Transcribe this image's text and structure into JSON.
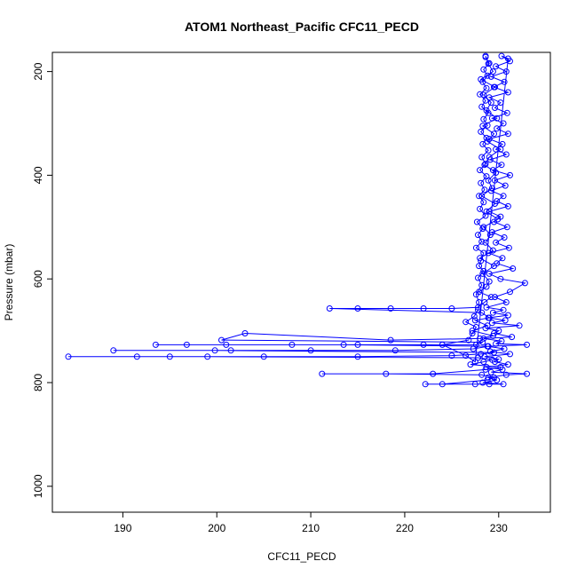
{
  "chart_data": {
    "type": "line",
    "title": "ATOM1 Northeast_Pacific CFC11_PECD",
    "xlabel": "CFC11_PECD",
    "ylabel": "Pressure (mbar)",
    "xlim": [
      182.5,
      235.5
    ],
    "ylim": [
      1050,
      163
    ],
    "y_inverted": true,
    "grid": false,
    "xticks": [
      190,
      200,
      210,
      220,
      230
    ],
    "yticks": [
      200,
      400,
      600,
      800,
      1000
    ],
    "colors": {
      "series": "#0000ff"
    },
    "series": [
      {
        "style": "points-and-lines",
        "points": [
          [
            228.6,
            170
          ],
          [
            228.9,
            185
          ],
          [
            229.4,
            200
          ],
          [
            228.1,
            215
          ],
          [
            229.6,
            230
          ],
          [
            228.4,
            245
          ],
          [
            229.2,
            260
          ],
          [
            228.7,
            275
          ],
          [
            229.8,
            290
          ],
          [
            228.3,
            305
          ],
          [
            229.5,
            320
          ],
          [
            228.8,
            335
          ],
          [
            230.2,
            350
          ],
          [
            229.0,
            365
          ],
          [
            228.5,
            380
          ],
          [
            229.7,
            395
          ],
          [
            228.9,
            410
          ],
          [
            229.3,
            425
          ],
          [
            228.2,
            440
          ],
          [
            229.6,
            455
          ],
          [
            228.7,
            470
          ],
          [
            229.9,
            485
          ],
          [
            228.4,
            500
          ],
          [
            229.1,
            515
          ],
          [
            228.6,
            530
          ],
          [
            229.4,
            545
          ],
          [
            228.0,
            560
          ],
          [
            229.5,
            575
          ],
          [
            228.3,
            590
          ],
          [
            229.0,
            605
          ],
          [
            228.7,
            615
          ],
          [
            227.9,
            625
          ],
          [
            229.2,
            635
          ],
          [
            228.5,
            645
          ],
          [
            227.8,
            655
          ],
          [
            225.0,
            657
          ],
          [
            222.0,
            657
          ],
          [
            218.5,
            657
          ],
          [
            215.0,
            657
          ],
          [
            212.0,
            657
          ],
          [
            228.2,
            665
          ],
          [
            229.0,
            675
          ],
          [
            227.5,
            680
          ],
          [
            228.8,
            690
          ],
          [
            227.2,
            700
          ],
          [
            229.4,
            710
          ],
          [
            228.0,
            715
          ],
          [
            218.5,
            718
          ],
          [
            203.0,
            705
          ],
          [
            200.5,
            718
          ],
          [
            228.3,
            722
          ],
          [
            227.6,
            727
          ],
          [
            222.0,
            727
          ],
          [
            215.0,
            727
          ],
          [
            208.0,
            727
          ],
          [
            201.0,
            727
          ],
          [
            196.8,
            727
          ],
          [
            193.5,
            727
          ],
          [
            213.5,
            727
          ],
          [
            228.9,
            730
          ],
          [
            227.3,
            735
          ],
          [
            219.0,
            738
          ],
          [
            210.0,
            738
          ],
          [
            201.5,
            738
          ],
          [
            189.0,
            738
          ],
          [
            199.8,
            738
          ],
          [
            229.5,
            742
          ],
          [
            228.1,
            745
          ],
          [
            225.0,
            748
          ],
          [
            215.0,
            750
          ],
          [
            205.0,
            750
          ],
          [
            195.0,
            750
          ],
          [
            184.2,
            750
          ],
          [
            191.5,
            750
          ],
          [
            199.0,
            750
          ],
          [
            227.8,
            752
          ],
          [
            229.3,
            756
          ],
          [
            228.4,
            760
          ],
          [
            227.0,
            765
          ],
          [
            230.2,
            770
          ],
          [
            228.6,
            775
          ],
          [
            223.0,
            783
          ],
          [
            211.2,
            783
          ],
          [
            218.0,
            783
          ],
          [
            228.2,
            785
          ],
          [
            229.5,
            790
          ],
          [
            228.8,
            795
          ],
          [
            224.0,
            803
          ],
          [
            222.2,
            803
          ],
          [
            227.5,
            803
          ],
          [
            229.0,
            803
          ],
          [
            230.5,
            803
          ],
          [
            228.3,
            800
          ],
          [
            229.8,
            795
          ],
          [
            228.9,
            790
          ],
          [
            230.8,
            785
          ],
          [
            233.0,
            783
          ],
          [
            229.2,
            780
          ],
          [
            230.4,
            775
          ],
          [
            228.7,
            770
          ],
          [
            231.0,
            765
          ],
          [
            229.6,
            760
          ],
          [
            230.0,
            755
          ],
          [
            228.5,
            750
          ],
          [
            231.2,
            745
          ],
          [
            229.1,
            740
          ],
          [
            230.6,
            735
          ],
          [
            228.8,
            730
          ],
          [
            233.0,
            727
          ],
          [
            229.7,
            725
          ],
          [
            230.3,
            720
          ],
          [
            228.4,
            715
          ],
          [
            231.4,
            712
          ],
          [
            229.5,
            705
          ],
          [
            230.0,
            700
          ],
          [
            228.6,
            695
          ],
          [
            232.2,
            690
          ],
          [
            229.3,
            685
          ],
          [
            230.7,
            680
          ],
          [
            228.9,
            675
          ],
          [
            231.0,
            670
          ],
          [
            229.4,
            665
          ],
          [
            230.5,
            660
          ],
          [
            228.7,
            655
          ],
          [
            230.8,
            645
          ],
          [
            229.6,
            635
          ],
          [
            231.2,
            625
          ],
          [
            232.8,
            608
          ],
          [
            230.2,
            600
          ],
          [
            229.0,
            590
          ],
          [
            231.5,
            580
          ],
          [
            229.8,
            570
          ],
          [
            230.4,
            560
          ],
          [
            228.9,
            550
          ],
          [
            231.1,
            540
          ],
          [
            229.7,
            530
          ],
          [
            230.6,
            520
          ],
          [
            229.3,
            510
          ],
          [
            230.9,
            500
          ],
          [
            229.5,
            490
          ],
          [
            230.2,
            480
          ],
          [
            229.0,
            470
          ],
          [
            231.0,
            460
          ],
          [
            229.8,
            450
          ],
          [
            230.5,
            440
          ],
          [
            229.2,
            430
          ],
          [
            230.7,
            420
          ],
          [
            229.6,
            410
          ],
          [
            231.2,
            400
          ],
          [
            229.4,
            390
          ],
          [
            230.3,
            380
          ],
          [
            229.1,
            370
          ],
          [
            230.8,
            360
          ],
          [
            229.7,
            350
          ],
          [
            230.4,
            340
          ],
          [
            229.0,
            330
          ],
          [
            231.0,
            320
          ],
          [
            229.8,
            310
          ],
          [
            230.5,
            300
          ],
          [
            229.3,
            290
          ],
          [
            230.9,
            280
          ],
          [
            229.6,
            270
          ],
          [
            230.2,
            260
          ],
          [
            229.0,
            250
          ],
          [
            231.0,
            240
          ],
          [
            229.5,
            230
          ],
          [
            230.6,
            220
          ],
          [
            229.2,
            210
          ],
          [
            230.8,
            200
          ],
          [
            229.7,
            190
          ],
          [
            231.2,
            180
          ],
          [
            230.3,
            170
          ],
          [
            231.0,
            175
          ],
          [
            227.5,
            760
          ],
          [
            226.5,
            748
          ],
          [
            224.0,
            727
          ],
          [
            226.8,
            718
          ],
          [
            227.2,
            705
          ],
          [
            227.6,
            693
          ],
          [
            226.5,
            683
          ],
          [
            227.4,
            672
          ],
          [
            227.8,
            660
          ],
          [
            227.9,
            645
          ],
          [
            227.6,
            630
          ],
          [
            228.2,
            612
          ],
          [
            227.8,
            598
          ],
          [
            228.4,
            585
          ],
          [
            227.9,
            575
          ],
          [
            228.1,
            565
          ],
          [
            228.4,
            550
          ],
          [
            227.6,
            540
          ],
          [
            228.2,
            528
          ],
          [
            227.8,
            515
          ],
          [
            228.3,
            503
          ],
          [
            227.7,
            490
          ],
          [
            228.6,
            478
          ],
          [
            228.0,
            465
          ],
          [
            228.4,
            452
          ],
          [
            227.9,
            440
          ],
          [
            228.5,
            428
          ],
          [
            228.1,
            415
          ],
          [
            228.7,
            402
          ],
          [
            228.0,
            390
          ],
          [
            228.6,
            378
          ],
          [
            228.2,
            365
          ],
          [
            228.9,
            352
          ],
          [
            228.3,
            340
          ],
          [
            228.7,
            328
          ],
          [
            228.1,
            316
          ],
          [
            228.8,
            304
          ],
          [
            228.4,
            292
          ],
          [
            228.9,
            280
          ],
          [
            228.2,
            268
          ],
          [
            228.6,
            256
          ],
          [
            228.0,
            244
          ],
          [
            228.7,
            232
          ],
          [
            228.3,
            220
          ],
          [
            228.8,
            208
          ],
          [
            228.4,
            196
          ],
          [
            229.0,
            184
          ],
          [
            228.6,
            172
          ]
        ]
      }
    ]
  }
}
